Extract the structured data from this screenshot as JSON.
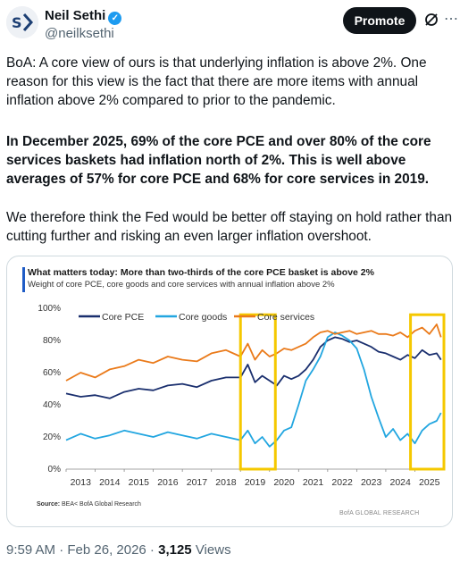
{
  "author": {
    "name": "Neil Sethi",
    "handle": "@neilksethi",
    "verified_icon": "verified-badge-icon",
    "avatar_icon": "avatar-logo-icon"
  },
  "actions": {
    "promote_label": "Promote",
    "grok_icon": "grok-icon",
    "more_icon": "more-icon"
  },
  "tweet": {
    "paragraph1": "BoA: A core view of ours is that underlying inflation is above 2%. One reason for this view is the fact that there are more items with annual inflation above 2% compared to prior to the pandemic.",
    "paragraph2": "In December 2025, 69% of the core PCE and over 80% of the core services baskets had inflation north of 2%. This is well above averages of 57% for core PCE and 68% for core services in 2019.",
    "paragraph3": "We therefore think the Fed would be better off staying on hold rather than cutting further and risking an even larger inflation overshoot."
  },
  "chart_data": {
    "type": "line",
    "title": "What matters today: More than two-thirds of the core PCE basket is above 2%",
    "subtitle": "Weight of core PCE, core goods and core services with annual inflation above 2%",
    "xlim": [
      2013,
      2026
    ],
    "ylim": [
      0,
      100
    ],
    "x_ticks": [
      "2013",
      "2014",
      "2015",
      "2016",
      "2017",
      "2018",
      "2019",
      "2020",
      "2021",
      "2022",
      "2023",
      "2024",
      "2025"
    ],
    "y_ticks": [
      "0%",
      "20%",
      "40%",
      "60%",
      "80%",
      "100%"
    ],
    "grid": false,
    "legend_position": "top",
    "highlight_boxes": [
      [
        2019.0,
        2020.2
      ],
      [
        2024.85,
        2026.0
      ]
    ],
    "highlight_color": "#f5c800",
    "series": [
      {
        "name": "Core PCE",
        "color": "#1a2f6e",
        "x": [
          2013,
          2013.5,
          2014,
          2014.5,
          2015,
          2015.5,
          2016,
          2016.5,
          2017,
          2017.5,
          2018,
          2018.5,
          2019,
          2019.25,
          2019.5,
          2019.75,
          2020,
          2020.25,
          2020.5,
          2020.75,
          2021,
          2021.25,
          2021.5,
          2021.75,
          2022,
          2022.25,
          2022.5,
          2022.75,
          2023,
          2023.25,
          2023.5,
          2023.75,
          2024,
          2024.25,
          2024.5,
          2024.75,
          2025,
          2025.25,
          2025.5,
          2025.75,
          2025.9
        ],
        "values": [
          47,
          45,
          46,
          44,
          48,
          50,
          49,
          52,
          53,
          51,
          55,
          57,
          57,
          65,
          54,
          58,
          55,
          52,
          58,
          56,
          58,
          62,
          68,
          76,
          80,
          82,
          81,
          79,
          80,
          78,
          76,
          73,
          72,
          70,
          68,
          71,
          69,
          74,
          71,
          72,
          68
        ]
      },
      {
        "name": "Core goods",
        "color": "#22a6e0",
        "x": [
          2013,
          2013.5,
          2014,
          2014.5,
          2015,
          2015.5,
          2016,
          2016.5,
          2017,
          2017.5,
          2018,
          2018.5,
          2019,
          2019.25,
          2019.5,
          2019.75,
          2020,
          2020.25,
          2020.5,
          2020.75,
          2021,
          2021.25,
          2021.5,
          2021.75,
          2022,
          2022.25,
          2022.5,
          2022.75,
          2023,
          2023.25,
          2023.5,
          2023.75,
          2024,
          2024.25,
          2024.5,
          2024.75,
          2025,
          2025.25,
          2025.5,
          2025.75,
          2025.9
        ],
        "values": [
          18,
          22,
          19,
          21,
          24,
          22,
          20,
          23,
          21,
          19,
          22,
          20,
          18,
          24,
          16,
          20,
          14,
          18,
          24,
          26,
          40,
          55,
          62,
          70,
          82,
          85,
          83,
          80,
          75,
          62,
          45,
          32,
          20,
          25,
          18,
          22,
          16,
          24,
          28,
          30,
          35
        ]
      },
      {
        "name": "Core services",
        "color": "#ea7a1a",
        "x": [
          2013,
          2013.5,
          2014,
          2014.5,
          2015,
          2015.5,
          2016,
          2016.5,
          2017,
          2017.5,
          2018,
          2018.5,
          2019,
          2019.25,
          2019.5,
          2019.75,
          2020,
          2020.25,
          2020.5,
          2020.75,
          2021,
          2021.25,
          2021.5,
          2021.75,
          2022,
          2022.25,
          2022.5,
          2022.75,
          2023,
          2023.25,
          2023.5,
          2023.75,
          2024,
          2024.25,
          2024.5,
          2024.75,
          2025,
          2025.25,
          2025.5,
          2025.75,
          2025.9
        ],
        "values": [
          55,
          60,
          57,
          62,
          64,
          68,
          66,
          70,
          68,
          67,
          72,
          74,
          70,
          78,
          68,
          74,
          70,
          72,
          75,
          74,
          76,
          78,
          82,
          85,
          86,
          84,
          85,
          86,
          84,
          85,
          86,
          84,
          84,
          83,
          85,
          82,
          86,
          88,
          84,
          90,
          82
        ]
      }
    ],
    "source_label": "Source:",
    "source_text": "BEA< BofA Global Research",
    "brand_text": "BofA GLOBAL RESEARCH"
  },
  "footer": {
    "time_date": "9:59 AM · Feb 26, 2026 · ",
    "views_count": "3,125",
    "views_label": " Views"
  }
}
